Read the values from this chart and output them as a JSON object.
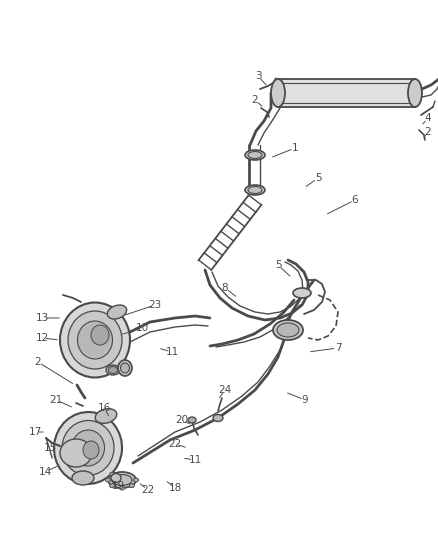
{
  "bg_color": "#ffffff",
  "line_color": "#4a4a4a",
  "label_color": "#4a4a4a",
  "figsize": [
    4.38,
    5.33
  ],
  "dpi": 100,
  "xlim": [
    0,
    438
  ],
  "ylim": [
    0,
    533
  ]
}
